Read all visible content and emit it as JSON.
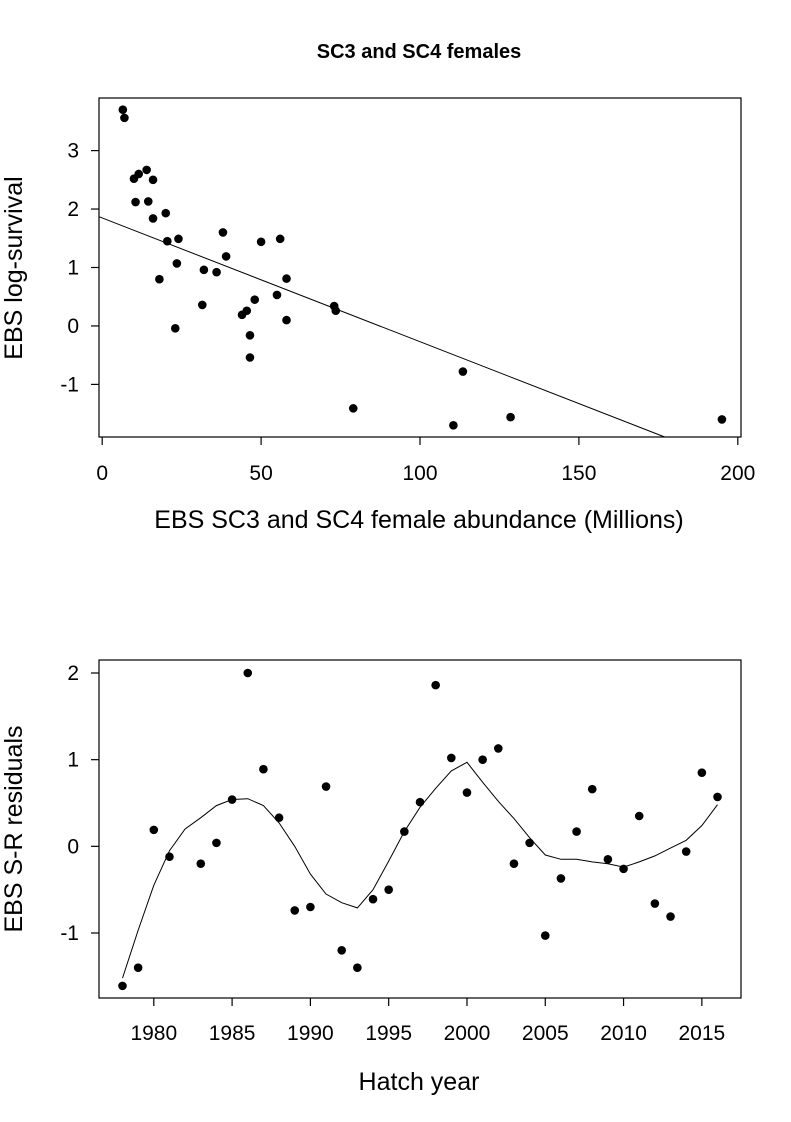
{
  "chart_data": [
    {
      "type": "scatter",
      "title": "SC3 and SC4 females",
      "xlabel": "EBS SC3 and SC4 female abundance (Millions)",
      "ylabel": "EBS log-survival",
      "xlim": [
        -1,
        201
      ],
      "ylim": [
        -1.9,
        3.9
      ],
      "x_ticks": [
        0,
        50,
        100,
        150,
        200
      ],
      "y_ticks": [
        -1,
        0,
        1,
        2,
        3
      ],
      "grid": false,
      "points": [
        {
          "x": 6.5,
          "y": 3.7
        },
        {
          "x": 7,
          "y": 3.56
        },
        {
          "x": 10,
          "y": 2.52
        },
        {
          "x": 11.5,
          "y": 2.6
        },
        {
          "x": 14,
          "y": 2.67
        },
        {
          "x": 16,
          "y": 2.5
        },
        {
          "x": 10.5,
          "y": 2.12
        },
        {
          "x": 14.5,
          "y": 2.13
        },
        {
          "x": 16,
          "y": 1.84
        },
        {
          "x": 20,
          "y": 1.93
        },
        {
          "x": 18,
          "y": 0.8
        },
        {
          "x": 20.5,
          "y": 1.45
        },
        {
          "x": 24,
          "y": 1.49
        },
        {
          "x": 23.5,
          "y": 1.07
        },
        {
          "x": 23,
          "y": -0.04
        },
        {
          "x": 32,
          "y": 0.96
        },
        {
          "x": 31.5,
          "y": 0.36
        },
        {
          "x": 36,
          "y": 0.92
        },
        {
          "x": 38,
          "y": 1.6
        },
        {
          "x": 39,
          "y": 1.19
        },
        {
          "x": 44,
          "y": 0.19
        },
        {
          "x": 45.5,
          "y": 0.26
        },
        {
          "x": 46.5,
          "y": -0.16
        },
        {
          "x": 48,
          "y": 0.45
        },
        {
          "x": 50,
          "y": 1.44
        },
        {
          "x": 46.5,
          "y": -0.54
        },
        {
          "x": 56,
          "y": 1.49
        },
        {
          "x": 55,
          "y": 0.53
        },
        {
          "x": 58,
          "y": 0.81
        },
        {
          "x": 58,
          "y": 0.1
        },
        {
          "x": 73,
          "y": 0.34
        },
        {
          "x": 73.5,
          "y": 0.26
        },
        {
          "x": 79,
          "y": -1.41
        },
        {
          "x": 110.5,
          "y": -1.7
        },
        {
          "x": 113.5,
          "y": -0.78
        },
        {
          "x": 128.5,
          "y": -1.56
        },
        {
          "x": 195,
          "y": -1.6
        }
      ],
      "fit_line": {
        "x": [
          -1,
          177
        ],
        "y": [
          1.87,
          -1.9
        ]
      }
    },
    {
      "type": "scatter",
      "title": "",
      "xlabel": "Hatch year",
      "ylabel": "EBS S-R residuals",
      "xlim": [
        1976.5,
        2017.5
      ],
      "ylim": [
        -1.75,
        2.15
      ],
      "x_ticks": [
        1980,
        1985,
        1990,
        1995,
        2000,
        2005,
        2010,
        2015
      ],
      "y_ticks": [
        -1,
        0,
        1,
        2
      ],
      "grid": false,
      "points": [
        {
          "x": 1978,
          "y": -1.61
        },
        {
          "x": 1979,
          "y": -1.4
        },
        {
          "x": 1980,
          "y": 0.19
        },
        {
          "x": 1981,
          "y": -0.12
        },
        {
          "x": 1983,
          "y": -0.2
        },
        {
          "x": 1984,
          "y": 0.04
        },
        {
          "x": 1985,
          "y": 0.54
        },
        {
          "x": 1986,
          "y": 2.0
        },
        {
          "x": 1987,
          "y": 0.89
        },
        {
          "x": 1988,
          "y": 0.33
        },
        {
          "x": 1989,
          "y": -0.74
        },
        {
          "x": 1990,
          "y": -0.7
        },
        {
          "x": 1991,
          "y": 0.69
        },
        {
          "x": 1992,
          "y": -1.2
        },
        {
          "x": 1993,
          "y": -1.4
        },
        {
          "x": 1994,
          "y": -0.61
        },
        {
          "x": 1995,
          "y": -0.5
        },
        {
          "x": 1996,
          "y": 0.17
        },
        {
          "x": 1997,
          "y": 0.51
        },
        {
          "x": 1998,
          "y": 1.86
        },
        {
          "x": 1999,
          "y": 1.02
        },
        {
          "x": 2000,
          "y": 0.62
        },
        {
          "x": 2001,
          "y": 1.0
        },
        {
          "x": 2002,
          "y": 1.13
        },
        {
          "x": 2003,
          "y": -0.2
        },
        {
          "x": 2004,
          "y": 0.04
        },
        {
          "x": 2005,
          "y": -1.03
        },
        {
          "x": 2006,
          "y": -0.37
        },
        {
          "x": 2007,
          "y": 0.17
        },
        {
          "x": 2008,
          "y": 0.66
        },
        {
          "x": 2009,
          "y": -0.15
        },
        {
          "x": 2010,
          "y": -0.26
        },
        {
          "x": 2011,
          "y": 0.35
        },
        {
          "x": 2012,
          "y": -0.66
        },
        {
          "x": 2013,
          "y": -0.81
        },
        {
          "x": 2014,
          "y": -0.06
        },
        {
          "x": 2015,
          "y": 0.85
        },
        {
          "x": 2016,
          "y": 0.57
        }
      ],
      "smooth_line": {
        "x": [
          1978,
          1979,
          1980,
          1981,
          1982,
          1983,
          1984,
          1985,
          1986,
          1987,
          1988,
          1989,
          1990,
          1991,
          1992,
          1993,
          1994,
          1995,
          1996,
          1997,
          1998,
          1999,
          2000,
          2001,
          2002,
          2003,
          2004,
          2005,
          2006,
          2007,
          2008,
          2009,
          2010,
          2011,
          2012,
          2013,
          2014,
          2015,
          2016
        ],
        "y": [
          -1.52,
          -0.97,
          -0.45,
          -0.05,
          0.2,
          0.33,
          0.47,
          0.54,
          0.55,
          0.47,
          0.27,
          0.0,
          -0.32,
          -0.55,
          -0.65,
          -0.71,
          -0.5,
          -0.17,
          0.17,
          0.45,
          0.67,
          0.87,
          0.97,
          0.74,
          0.52,
          0.32,
          0.1,
          -0.1,
          -0.15,
          -0.15,
          -0.18,
          -0.2,
          -0.24,
          -0.18,
          -0.11,
          -0.02,
          0.07,
          0.24,
          0.48
        ]
      }
    }
  ]
}
